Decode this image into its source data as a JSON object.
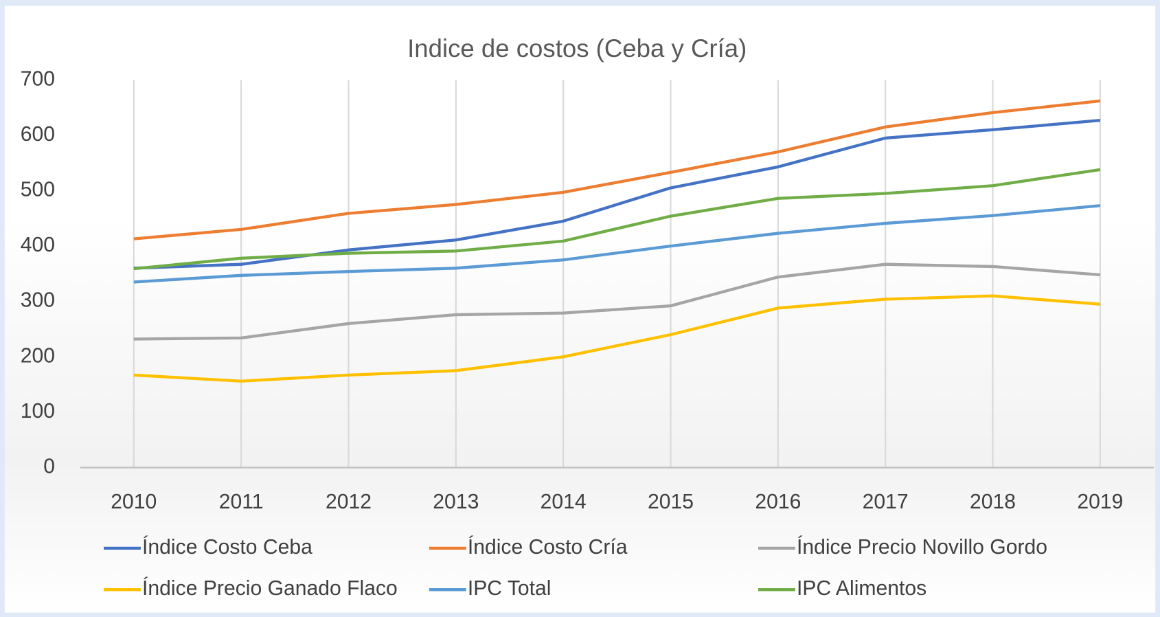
{
  "chart_data": {
    "type": "line",
    "title": "Indice de costos (Ceba y Cría)",
    "categories": [
      "2010",
      "2011",
      "2012",
      "2013",
      "2014",
      "2015",
      "2016",
      "2017",
      "2018",
      "2019"
    ],
    "series": [
      {
        "name": "Índice Costo Ceba",
        "color": "#4472c4",
        "values": [
          360,
          367,
          393,
          411,
          445,
          505,
          543,
          595,
          610,
          627
        ]
      },
      {
        "name": "Índice Costo Cría",
        "color": "#ed7d31",
        "values": [
          413,
          430,
          459,
          475,
          497,
          533,
          570,
          615,
          641,
          662
        ]
      },
      {
        "name": "Índice Precio Novillo Gordo",
        "color": "#a5a5a5",
        "values": [
          232,
          234,
          260,
          276,
          279,
          292,
          344,
          367,
          363,
          348
        ]
      },
      {
        "name": "Índice Precio Ganado Flaco",
        "color": "#ffc000",
        "values": [
          167,
          156,
          167,
          175,
          200,
          240,
          288,
          304,
          310,
          295
        ]
      },
      {
        "name": "IPC Total",
        "color": "#5b9bd5",
        "values": [
          335,
          347,
          354,
          360,
          375,
          400,
          423,
          441,
          455,
          473
        ]
      },
      {
        "name": "IPC Alimentos",
        "color": "#70ad47",
        "values": [
          359,
          378,
          387,
          391,
          409,
          454,
          486,
          495,
          509,
          538
        ]
      }
    ],
    "ylim": [
      0,
      700
    ],
    "yticks": [
      0,
      100,
      200,
      300,
      400,
      500,
      600,
      700
    ],
    "grid": "x",
    "legend": "bottom"
  }
}
